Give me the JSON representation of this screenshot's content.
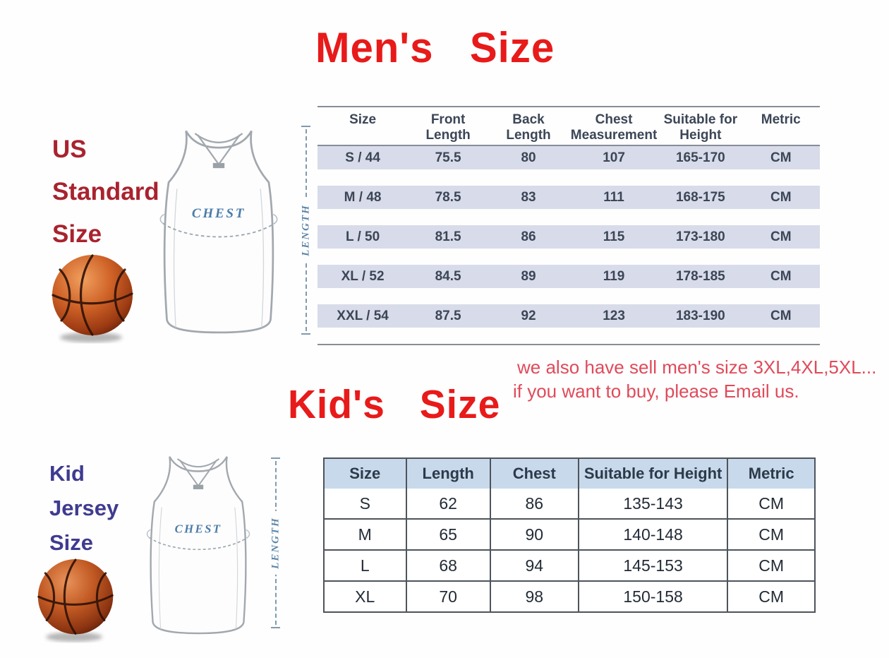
{
  "mens_section": {
    "title": "Men's   Size",
    "side_label": {
      "line1": "US",
      "line2": "Standard",
      "line3": "Size"
    },
    "jersey": {
      "chest_label": "CHEST",
      "length_label": "LENGTH"
    },
    "table": {
      "headers": [
        "Size",
        "Front Length",
        "Back Length",
        "Chest Measurement",
        "Suitable for Height",
        "Metric"
      ],
      "rows": [
        [
          "S / 44",
          "75.5",
          "80",
          "107",
          "165-170",
          "CM"
        ],
        [
          "M / 48",
          "78.5",
          "83",
          "111",
          "168-175",
          "CM"
        ],
        [
          "L / 50",
          "81.5",
          "86",
          "115",
          "173-180",
          "CM"
        ],
        [
          "XL / 52",
          "84.5",
          "89",
          "119",
          "178-185",
          "CM"
        ],
        [
          "XXL / 54",
          "87.5",
          "92",
          "123",
          "183-190",
          "CM"
        ]
      ]
    },
    "note": {
      "line1": "we also have sell men's size 3XL,4XL,5XL...",
      "line2": "if you want to buy, please Email us."
    }
  },
  "kids_section": {
    "title": "Kid's   Size",
    "side_label": {
      "line1": "Kid",
      "line2": "Jersey",
      "line3": "Size"
    },
    "jersey": {
      "chest_label": "CHEST",
      "length_label": "LENGTH"
    },
    "table": {
      "headers": [
        "Size",
        "Length",
        "Chest",
        "Suitable for Height",
        "Metric"
      ],
      "rows": [
        [
          "S",
          "62",
          "86",
          "135-143",
          "CM"
        ],
        [
          "M",
          "65",
          "90",
          "140-148",
          "CM"
        ],
        [
          "L",
          "68",
          "94",
          "145-153",
          "CM"
        ],
        [
          "XL",
          "70",
          "98",
          "150-158",
          "CM"
        ]
      ]
    }
  },
  "colors": {
    "title_red": "#e81a1a",
    "us_label_red": "#a8232e",
    "kid_label_navy": "#3f3b90",
    "note_red": "#e04a5a",
    "mens_row_band": "#d8dbe9",
    "mens_table_line": "#878d96",
    "kids_header_bg": "#c8d9eb",
    "kids_table_border": "#4e545b",
    "table_text": "#3c4656",
    "jersey_outline_gray": "#a2a8ae",
    "measure_blue": "#5c86a8",
    "basketball_orange": "#cf6227"
  }
}
